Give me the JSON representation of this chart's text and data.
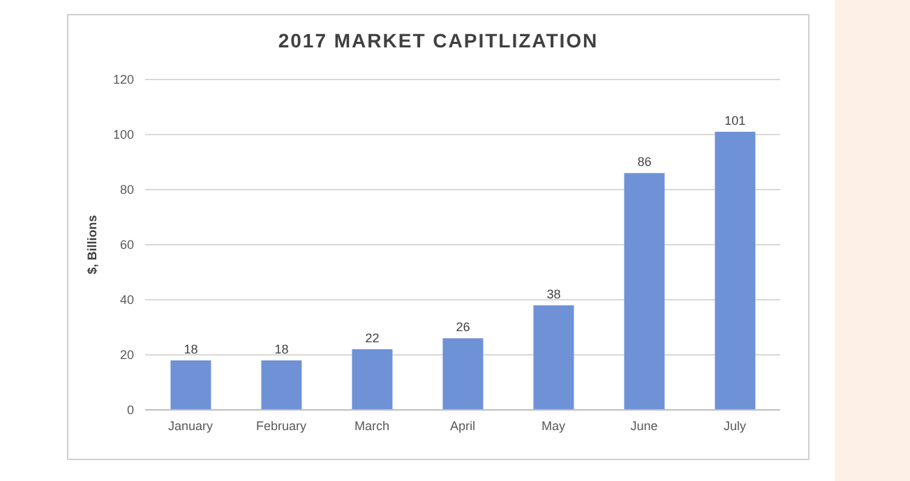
{
  "chart_data": {
    "type": "bar",
    "title": "2017 MARKET CAPITLIZATION",
    "ylabel": "$, Billions",
    "categories": [
      "January",
      "February",
      "March",
      "April",
      "May",
      "June",
      "July"
    ],
    "values": [
      18,
      18,
      22,
      26,
      38,
      86,
      101
    ],
    "color": "#6f92d6",
    "ylim": [
      0,
      120
    ],
    "yticks": [
      0,
      20,
      40,
      60,
      80,
      100,
      120
    ],
    "grid": "y",
    "data_labels": true
  }
}
